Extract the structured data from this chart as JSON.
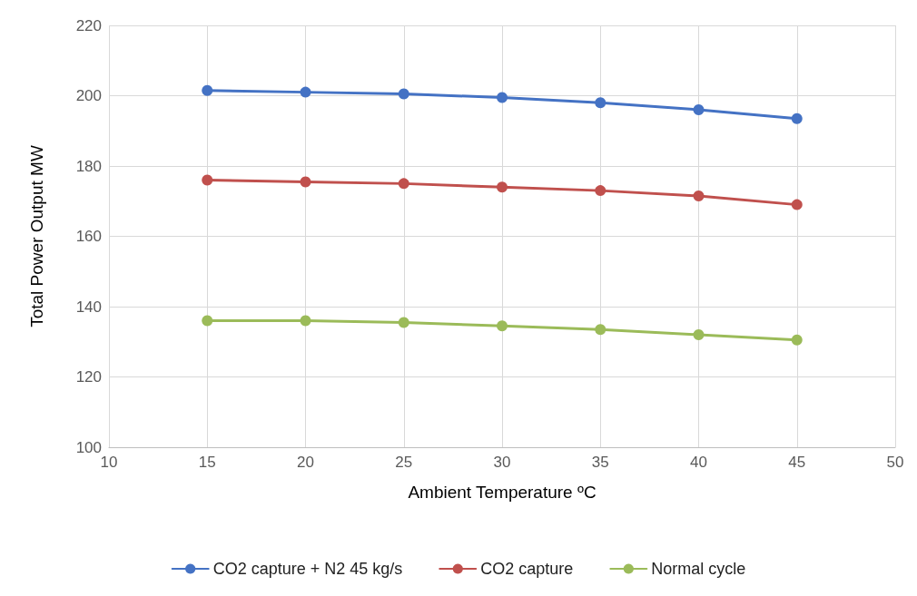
{
  "chart_data": {
    "type": "line",
    "xlabel": "Ambient Temperature ºC",
    "ylabel": "Total Power Output MW",
    "x": [
      15,
      20,
      25,
      30,
      35,
      40,
      45
    ],
    "series": [
      {
        "name": "CO2 capture + N2 45 kg/s",
        "color": "#4472c4",
        "values": [
          201.5,
          201,
          200.5,
          199.5,
          198,
          196,
          193.5
        ]
      },
      {
        "name": "CO2 capture",
        "color": "#c0504d",
        "values": [
          176,
          175.5,
          175,
          174,
          173,
          171.5,
          169
        ]
      },
      {
        "name": "Normal cycle",
        "color": "#9bbb59",
        "values": [
          136,
          136,
          135.5,
          134.5,
          133.5,
          132,
          130.5
        ]
      }
    ],
    "xlim": [
      10,
      50
    ],
    "xticks": [
      10,
      15,
      20,
      25,
      30,
      35,
      40,
      45,
      50
    ],
    "ylim": [
      100,
      220
    ],
    "yticks": [
      100,
      120,
      140,
      160,
      180,
      200,
      220
    ],
    "grid": true,
    "legend": "bottom",
    "marker": "circle",
    "line_style": "solid"
  }
}
